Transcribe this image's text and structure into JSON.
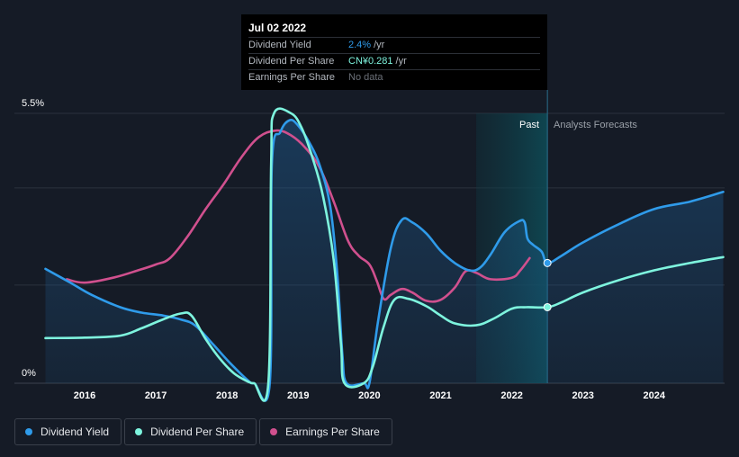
{
  "colors": {
    "background": "#151b26",
    "dividend_yield": "#2f9bea",
    "dividend_per_share": "#7ef4de",
    "earnings_per_share": "#d0508e"
  },
  "tooltip": {
    "date": "Jul 02 2022",
    "rows": [
      {
        "label": "Dividend Yield",
        "value": "2.4%",
        "unit": "/yr"
      },
      {
        "label": "Dividend Per Share",
        "value": "CN¥0.281",
        "unit": "/yr"
      },
      {
        "label": "Earnings Per Share",
        "value": "No data",
        "unit": ""
      }
    ]
  },
  "legend": [
    {
      "label": "Dividend Yield",
      "color": "#2f9bea"
    },
    {
      "label": "Dividend Per Share",
      "color": "#7ef4de"
    },
    {
      "label": "Earnings Per Share",
      "color": "#d0508e"
    }
  ],
  "chart_data": {
    "type": "line",
    "y_top_label": "5.5%",
    "y_bottom_label": "0%",
    "ylim": [
      0,
      5.5
    ],
    "xlim": [
      2015.45,
      2024.97
    ],
    "x_ticks": [
      2016,
      2017,
      2018,
      2019,
      2020,
      2021,
      2022,
      2023,
      2024
    ],
    "past_label": "Past",
    "forecast_label": "Analysts Forecasts",
    "highlight_range": [
      2021.5,
      2022.5
    ],
    "marker_date": 2022.5,
    "gridlines": [
      5.5,
      3.98,
      2.0
    ],
    "series": [
      {
        "name": "Dividend Yield",
        "key": "dividend_yield",
        "fill": true,
        "points": [
          [
            2015.45,
            2.33
          ],
          [
            2015.8,
            2.05
          ],
          [
            2016.1,
            1.8
          ],
          [
            2016.5,
            1.55
          ],
          [
            2016.8,
            1.44
          ],
          [
            2017.1,
            1.38
          ],
          [
            2017.35,
            1.3
          ],
          [
            2017.55,
            1.18
          ],
          [
            2017.8,
            0.8
          ],
          [
            2018.05,
            0.4
          ],
          [
            2018.3,
            0.05
          ],
          [
            2018.38,
            0.0
          ],
          [
            2018.6,
            0.0
          ],
          [
            2018.63,
            4.45
          ],
          [
            2018.75,
            5.12
          ],
          [
            2018.88,
            5.36
          ],
          [
            2019.0,
            5.25
          ],
          [
            2019.15,
            4.92
          ],
          [
            2019.3,
            4.45
          ],
          [
            2019.45,
            3.6
          ],
          [
            2019.55,
            2.2
          ],
          [
            2019.62,
            0.6
          ],
          [
            2019.68,
            0.0
          ],
          [
            2019.92,
            0.0
          ],
          [
            2020.0,
            0.0
          ],
          [
            2020.12,
            1.25
          ],
          [
            2020.3,
            2.75
          ],
          [
            2020.45,
            3.32
          ],
          [
            2020.6,
            3.28
          ],
          [
            2020.8,
            3.05
          ],
          [
            2021.0,
            2.7
          ],
          [
            2021.2,
            2.45
          ],
          [
            2021.4,
            2.3
          ],
          [
            2021.55,
            2.35
          ],
          [
            2021.7,
            2.62
          ],
          [
            2021.9,
            3.08
          ],
          [
            2022.1,
            3.3
          ],
          [
            2022.18,
            3.28
          ],
          [
            2022.22,
            2.95
          ],
          [
            2022.3,
            2.82
          ],
          [
            2022.42,
            2.68
          ],
          [
            2022.5,
            2.45
          ],
          [
            2022.7,
            2.6
          ],
          [
            2023.0,
            2.87
          ],
          [
            2023.5,
            3.24
          ],
          [
            2024.0,
            3.55
          ],
          [
            2024.5,
            3.7
          ],
          [
            2024.97,
            3.9
          ]
        ]
      },
      {
        "name": "Dividend Per Share",
        "key": "dividend_per_share",
        "fill": false,
        "points": [
          [
            2015.45,
            0.92
          ],
          [
            2016.0,
            0.93
          ],
          [
            2016.5,
            0.97
          ],
          [
            2016.8,
            1.12
          ],
          [
            2017.1,
            1.3
          ],
          [
            2017.35,
            1.42
          ],
          [
            2017.5,
            1.38
          ],
          [
            2017.7,
            0.9
          ],
          [
            2017.9,
            0.5
          ],
          [
            2018.1,
            0.2
          ],
          [
            2018.3,
            0.03
          ],
          [
            2018.38,
            0.0
          ],
          [
            2018.58,
            0.0
          ],
          [
            2018.62,
            4.45
          ],
          [
            2018.66,
            5.5
          ],
          [
            2018.9,
            5.5
          ],
          [
            2019.05,
            5.2
          ],
          [
            2019.2,
            4.6
          ],
          [
            2019.35,
            3.8
          ],
          [
            2019.5,
            2.5
          ],
          [
            2019.6,
            0.8
          ],
          [
            2019.65,
            0.0
          ],
          [
            2019.92,
            0.0
          ],
          [
            2020.05,
            0.35
          ],
          [
            2020.2,
            1.15
          ],
          [
            2020.35,
            1.7
          ],
          [
            2020.55,
            1.72
          ],
          [
            2020.8,
            1.57
          ],
          [
            2021.0,
            1.38
          ],
          [
            2021.2,
            1.22
          ],
          [
            2021.5,
            1.18
          ],
          [
            2021.75,
            1.32
          ],
          [
            2022.0,
            1.52
          ],
          [
            2022.2,
            1.55
          ],
          [
            2022.5,
            1.55
          ],
          [
            2022.7,
            1.65
          ],
          [
            2023.0,
            1.85
          ],
          [
            2023.5,
            2.1
          ],
          [
            2024.0,
            2.3
          ],
          [
            2024.5,
            2.45
          ],
          [
            2024.97,
            2.57
          ]
        ]
      },
      {
        "name": "Earnings Per Share",
        "key": "earnings_per_share",
        "fill": false,
        "points": [
          [
            2015.75,
            2.12
          ],
          [
            2016.0,
            2.05
          ],
          [
            2016.4,
            2.15
          ],
          [
            2016.75,
            2.3
          ],
          [
            2017.0,
            2.42
          ],
          [
            2017.2,
            2.55
          ],
          [
            2017.45,
            3.0
          ],
          [
            2017.7,
            3.55
          ],
          [
            2017.95,
            4.05
          ],
          [
            2018.2,
            4.6
          ],
          [
            2018.45,
            5.02
          ],
          [
            2018.7,
            5.15
          ],
          [
            2018.9,
            5.05
          ],
          [
            2019.1,
            4.8
          ],
          [
            2019.3,
            4.4
          ],
          [
            2019.5,
            3.7
          ],
          [
            2019.7,
            2.9
          ],
          [
            2019.85,
            2.6
          ],
          [
            2020.0,
            2.42
          ],
          [
            2020.1,
            2.1
          ],
          [
            2020.2,
            1.72
          ],
          [
            2020.3,
            1.8
          ],
          [
            2020.45,
            1.92
          ],
          [
            2020.6,
            1.85
          ],
          [
            2020.8,
            1.68
          ],
          [
            2021.0,
            1.7
          ],
          [
            2021.2,
            1.95
          ],
          [
            2021.35,
            2.28
          ],
          [
            2021.5,
            2.25
          ],
          [
            2021.7,
            2.12
          ],
          [
            2022.0,
            2.15
          ],
          [
            2022.12,
            2.3
          ],
          [
            2022.25,
            2.55
          ]
        ]
      }
    ],
    "markers": [
      {
        "series": "dividend_yield",
        "x": 2022.5,
        "y": 2.45
      },
      {
        "series": "dividend_per_share",
        "x": 2022.5,
        "y": 1.55
      }
    ]
  }
}
